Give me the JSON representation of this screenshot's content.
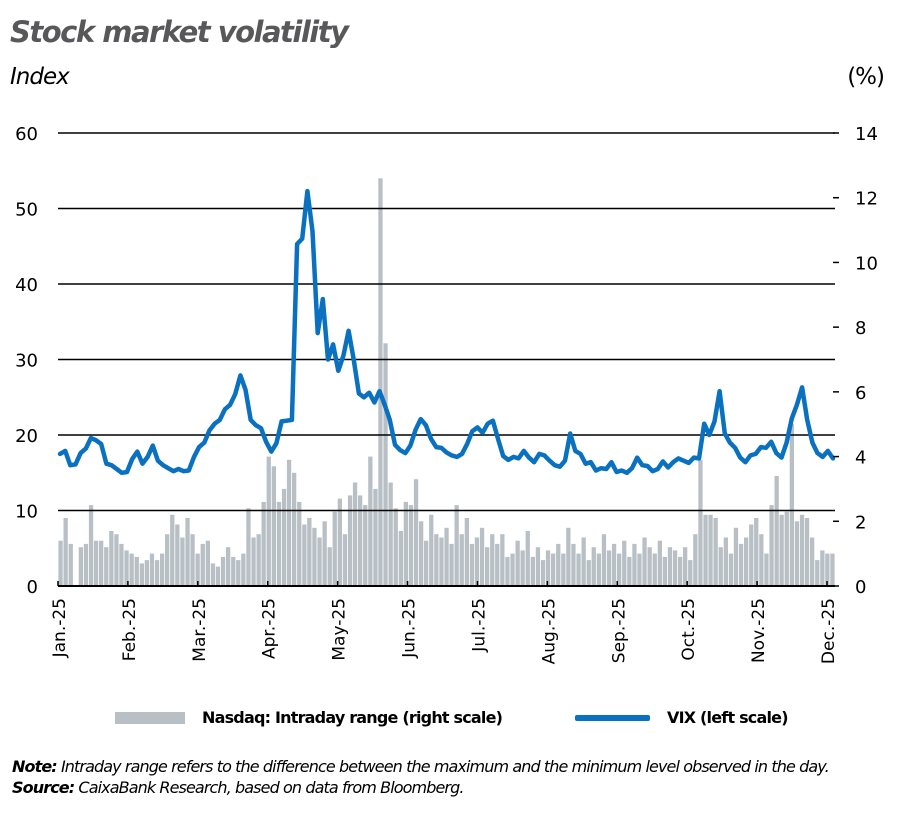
{
  "header": {
    "title": "Stock market volatility",
    "left_axis_unit": "Index",
    "right_axis_unit": "(%)"
  },
  "legend": {
    "bar_label": "Nasdaq: Intraday range (right scale)",
    "line_label": "VIX (left scale)"
  },
  "footer": {
    "note_label": "Note:",
    "note_text": " Intraday range refers to the difference between the maximum and the minimum level observed in the day.",
    "source_label": "Source:",
    "source_text": " CaixaBank Research, based on data from Bloomberg."
  },
  "colors": {
    "vix_line": "#0a71c0",
    "nasdaq_bar": "#b8c0c6",
    "title": "#58585a",
    "grid": "#000000"
  },
  "chart_data": {
    "type": "bar+line",
    "title": "Stock market volatility",
    "xlabel": "",
    "ylabel_left": "Index",
    "ylabel_right": "(%)",
    "ylim_left": [
      0,
      60
    ],
    "ylim_right": [
      0,
      14
    ],
    "yticks_left": [
      0,
      10,
      20,
      30,
      40,
      50,
      60
    ],
    "yticks_right": [
      0,
      2,
      4,
      6,
      8,
      10,
      12,
      14
    ],
    "grid": true,
    "legend_position": "bottom",
    "categories": [
      "Jan.-25",
      "Feb.-25",
      "Mar.-25",
      "Apr.-25",
      "May-25",
      "Jun.-25",
      "Jul.-25",
      "Aug.-25",
      "Sep.-25",
      "Oct.-25",
      "Nov.-25",
      "Dec.-25"
    ],
    "series": [
      {
        "name": "VIX (left scale)",
        "axis": "left",
        "type": "line",
        "values": [
          17.5,
          17.9,
          16.0,
          16.1,
          17.6,
          18.2,
          19.6,
          19.3,
          18.8,
          16.2,
          16.0,
          15.5,
          15.0,
          15.1,
          16.8,
          17.8,
          16.2,
          17.1,
          18.6,
          16.6,
          16.0,
          15.6,
          15.2,
          15.5,
          15.2,
          15.3,
          17.1,
          18.4,
          19.0,
          20.6,
          21.5,
          22.0,
          23.4,
          24.0,
          25.4,
          27.9,
          26.0,
          22.0,
          21.3,
          20.9,
          19.1,
          17.8,
          18.9,
          21.8,
          21.9,
          22.0,
          45.3,
          46.0,
          52.3,
          47.0,
          33.5,
          38.0,
          30.0,
          32.0,
          28.5,
          30.5,
          33.8,
          30.0,
          25.5,
          25.0,
          25.6,
          24.3,
          25.8,
          24.0,
          22.0,
          18.7,
          18.0,
          17.6,
          18.6,
          20.7,
          22.1,
          21.3,
          19.5,
          18.4,
          18.3,
          17.7,
          17.3,
          17.1,
          17.5,
          18.8,
          20.5,
          21.0,
          20.3,
          21.5,
          21.9,
          19.5,
          17.2,
          16.7,
          17.1,
          16.9,
          17.9,
          17.0,
          16.4,
          17.5,
          17.3,
          16.6,
          16.0,
          15.8,
          16.6,
          20.2,
          17.9,
          17.5,
          16.2,
          16.4,
          15.3,
          15.6,
          15.5,
          16.4,
          15.1,
          15.3,
          15.0,
          15.6,
          17.0,
          16.0,
          15.9,
          15.2,
          15.5,
          16.5,
          15.7,
          16.4,
          16.9,
          16.6,
          16.3,
          17.0,
          16.9,
          21.5,
          20.0,
          21.8,
          25.8,
          20.2,
          19.0,
          18.3,
          17.0,
          16.4,
          17.3,
          17.5,
          18.4,
          18.3,
          19.1,
          17.6,
          17.0,
          19.0,
          22.2,
          24.0,
          26.3,
          22.0,
          19.0,
          17.6,
          17.1,
          17.9,
          16.9
        ]
      },
      {
        "name": "Nasdaq: Intraday range (right scale)",
        "axis": "right",
        "type": "bar",
        "values": [
          1.4,
          2.1,
          1.3,
          0.0,
          1.2,
          1.3,
          2.5,
          1.4,
          1.4,
          1.2,
          1.7,
          1.6,
          1.3,
          1.1,
          1.0,
          0.9,
          0.7,
          0.8,
          1.0,
          0.8,
          1.0,
          1.6,
          2.2,
          1.9,
          1.5,
          2.1,
          1.6,
          1.0,
          1.3,
          1.4,
          0.7,
          0.6,
          0.9,
          1.2,
          0.9,
          0.8,
          1.0,
          2.4,
          1.5,
          1.6,
          2.6,
          4.0,
          3.7,
          2.6,
          3.0,
          3.9,
          3.5,
          2.6,
          1.9,
          2.1,
          1.8,
          1.5,
          2.0,
          1.2,
          2.3,
          2.7,
          1.6,
          2.8,
          3.2,
          2.8,
          2.5,
          4.0,
          3.0,
          12.6,
          7.5,
          3.2,
          2.4,
          1.7,
          2.6,
          2.5,
          3.3,
          2.0,
          1.4,
          2.2,
          1.6,
          1.5,
          1.8,
          1.3,
          2.5,
          1.6,
          2.1,
          1.3,
          1.5,
          1.8,
          1.2,
          1.6,
          1.3,
          1.6,
          0.9,
          1.0,
          1.4,
          1.1,
          1.7,
          0.9,
          1.2,
          0.8,
          1.1,
          1.0,
          1.3,
          1.0,
          1.8,
          1.3,
          1.0,
          1.5,
          0.8,
          1.2,
          1.0,
          1.6,
          1.1,
          1.3,
          1.0,
          1.4,
          0.9,
          1.3,
          1.0,
          1.5,
          1.2,
          1.0,
          1.4,
          0.9,
          1.2,
          1.1,
          0.9,
          1.2,
          0.8,
          1.6,
          3.9,
          2.2,
          2.2,
          2.1,
          1.2,
          1.5,
          1.0,
          1.8,
          1.3,
          1.5,
          1.9,
          2.1,
          1.6,
          1.0,
          2.5,
          3.4,
          2.2,
          2.3,
          5.0,
          2.0,
          2.2,
          2.1,
          1.5,
          0.8,
          1.1,
          1.0,
          1.0
        ]
      }
    ]
  }
}
